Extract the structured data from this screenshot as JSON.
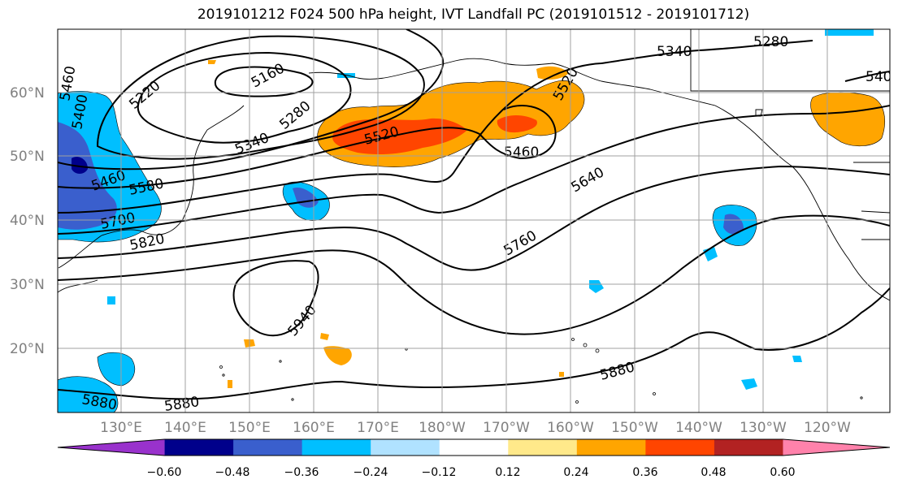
{
  "title": "2019101212 F024 500 hPa height, IVT Landfall PC (2019101512 - 2019101712)",
  "lon_labels": [
    "130°E",
    "140°E",
    "150°E",
    "160°E",
    "170°E",
    "180°W",
    "170°W",
    "160°W",
    "150°W",
    "140°W",
    "130°W",
    "120°W"
  ],
  "lat_labels": [
    "20°N",
    "30°N",
    "40°N",
    "50°N",
    "60°N"
  ],
  "contour_labels": [
    "5160",
    "5220",
    "5280",
    "5340",
    "5400",
    "5460",
    "5520",
    "5580",
    "5640",
    "5700",
    "5760",
    "5820",
    "5880",
    "5940"
  ],
  "colorbar": {
    "tick_labels": [
      "−0.60",
      "−0.48",
      "−0.36",
      "−0.24",
      "−0.12",
      "0.12",
      "0.24",
      "0.36",
      "0.48",
      "0.60"
    ],
    "colors": [
      "#9932cc",
      "#00008b",
      "#3a5fcd",
      "#00bfff",
      "#b0e2ff",
      "#ffffff",
      "#ffe98a",
      "#ffa500",
      "#ff4500",
      "#b22222",
      "#ff82ab"
    ]
  },
  "colors": {
    "grid": "#a0a0a0",
    "contour": "#000000",
    "coast": "#000000"
  }
}
